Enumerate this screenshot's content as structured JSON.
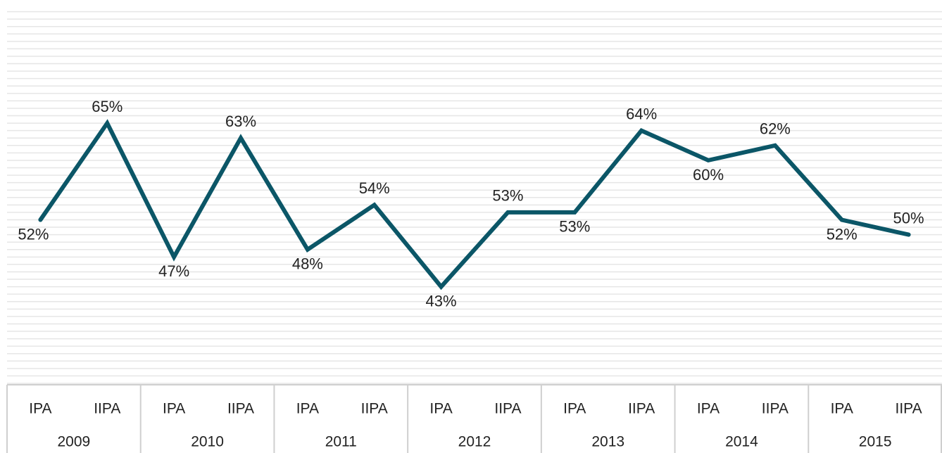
{
  "chart_data": {
    "type": "line",
    "categories": [
      "IPA",
      "IIPA",
      "IPA",
      "IIPA",
      "IPA",
      "IIPA",
      "IPA",
      "IIPA",
      "IPA",
      "IIPA",
      "IPA",
      "IIPA",
      "IPA",
      "IIPA"
    ],
    "groups": [
      "2009",
      "2010",
      "2011",
      "2012",
      "2013",
      "2014",
      "2015"
    ],
    "series": [
      {
        "color": "#0b5667",
        "values": [
          52,
          65,
          47,
          63,
          48,
          54,
          43,
          53,
          53,
          64,
          60,
          62,
          52,
          50
        ],
        "value_labels": [
          "52%",
          "65%",
          "47%",
          "63%",
          "48%",
          "54%",
          "43%",
          "53%",
          "53%",
          "64%",
          "60%",
          "62%",
          "52%",
          "50%"
        ]
      }
    ],
    "ylim": [
      30,
      81
    ],
    "yticks": [
      30,
      31,
      32,
      33,
      34,
      35,
      36,
      37,
      38,
      39,
      40,
      41,
      42,
      43,
      44,
      45,
      46,
      47,
      48,
      49,
      50,
      51,
      52,
      53,
      54,
      55,
      56,
      57,
      58,
      59,
      60,
      61,
      62,
      63,
      64,
      65,
      66,
      67,
      68,
      69,
      70,
      71,
      72,
      73,
      74,
      75,
      76,
      77,
      78,
      79,
      80
    ],
    "ytick_labels": false,
    "grid": true
  }
}
